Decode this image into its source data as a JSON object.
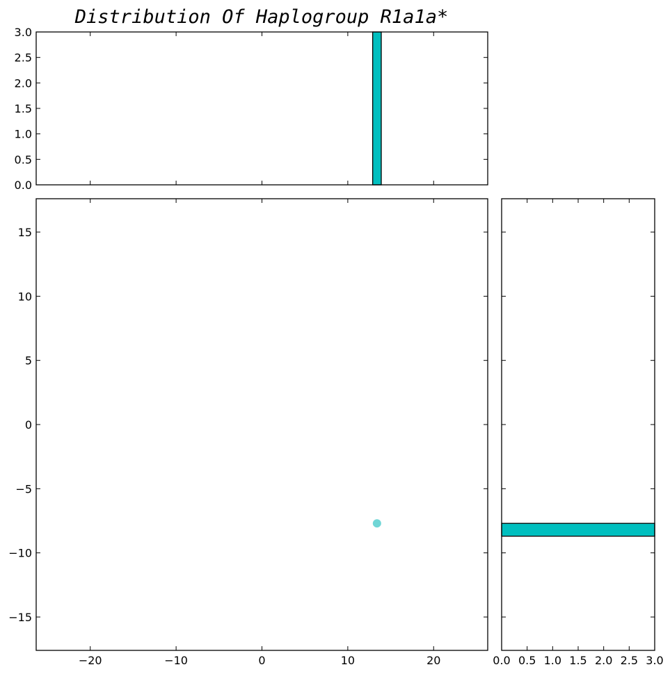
{
  "title": "Distribution Of Haplogroup R1a1a*",
  "colors": {
    "bar": "#00bfbf",
    "point": "#40c8c8",
    "edge": "#000000"
  },
  "chart_data": [
    {
      "id": "scatter",
      "type": "scatter",
      "xlim": [
        -26.3,
        26.3
      ],
      "ylim": [
        -17.6,
        17.6
      ],
      "xticks": [
        -20,
        -10,
        0,
        10,
        20
      ],
      "xtick_labels": [
        "−20",
        "−10",
        "0",
        "10",
        "20"
      ],
      "yticks": [
        -15,
        -10,
        -5,
        0,
        5,
        10,
        15
      ],
      "ytick_labels": [
        "−15",
        "−10",
        "−5",
        "0",
        "5",
        "10",
        "15"
      ],
      "points": [
        {
          "x": 13.4,
          "y": -7.7
        }
      ],
      "grid": false
    },
    {
      "id": "x-histogram",
      "type": "bar",
      "orientation": "vertical",
      "xlim": [
        -26.3,
        26.3
      ],
      "ylim": [
        0,
        3.0
      ],
      "yticks": [
        0,
        0.5,
        1.0,
        1.5,
        2.0,
        2.5,
        3.0
      ],
      "ytick_labels": [
        "0.0",
        "0.5",
        "1.0",
        "1.5",
        "2.0",
        "2.5",
        "3.0"
      ],
      "bins": [
        {
          "start": 12.9,
          "end": 13.9,
          "count": 3
        }
      ],
      "grid": false
    },
    {
      "id": "y-histogram",
      "type": "bar",
      "orientation": "horizontal",
      "xlim": [
        0,
        3.0
      ],
      "ylim": [
        -17.6,
        17.6
      ],
      "xticks": [
        0,
        0.5,
        1.0,
        1.5,
        2.0,
        2.5,
        3.0
      ],
      "xtick_labels": [
        "0.0",
        "0.5",
        "1.0",
        "1.5",
        "2.0",
        "2.5",
        "3.0"
      ],
      "bins": [
        {
          "start": -8.7,
          "end": -7.7,
          "count": 3
        }
      ],
      "grid": false
    }
  ]
}
